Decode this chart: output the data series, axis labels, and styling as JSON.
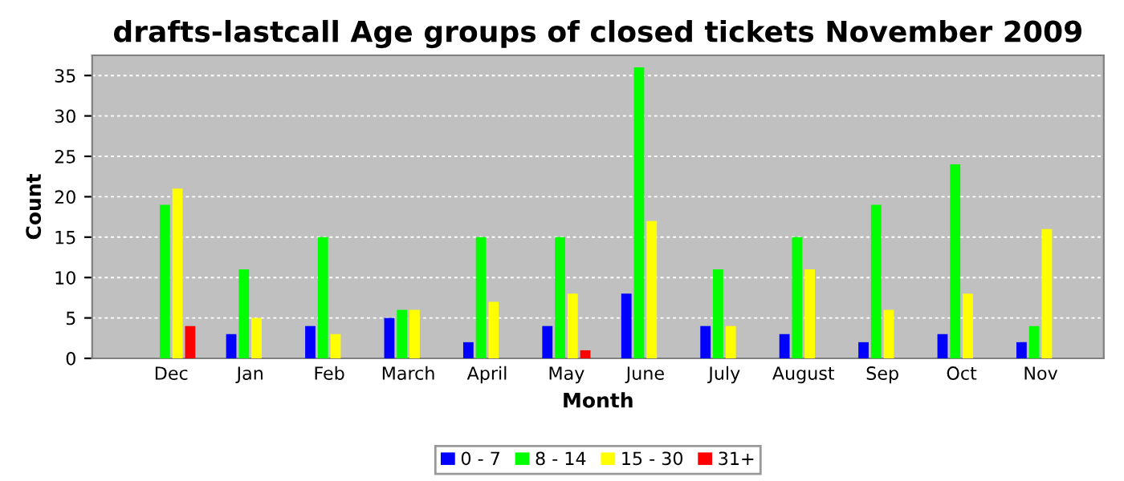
{
  "chart_data": {
    "type": "bar",
    "title": "drafts-lastcall Age groups of closed tickets November 2009",
    "xlabel": "Month",
    "ylabel": "Count",
    "categories": [
      "Dec",
      "Jan",
      "Feb",
      "March",
      "April",
      "May",
      "June",
      "July",
      "August",
      "Sep",
      "Oct",
      "Nov"
    ],
    "series": [
      {
        "name": "0 - 7",
        "color": "#0000ff",
        "values": [
          0,
          3,
          4,
          5,
          2,
          4,
          8,
          4,
          3,
          2,
          3,
          2
        ]
      },
      {
        "name": "8 - 14",
        "color": "#00ff00",
        "values": [
          19,
          11,
          15,
          6,
          15,
          15,
          36,
          11,
          15,
          19,
          24,
          4
        ]
      },
      {
        "name": "15 - 30",
        "color": "#ffff00",
        "values": [
          21,
          5,
          3,
          6,
          7,
          8,
          17,
          4,
          11,
          6,
          8,
          16
        ]
      },
      {
        "name": "31+",
        "color": "#ff0000",
        "values": [
          4,
          0,
          0,
          0,
          0,
          1,
          0,
          0,
          0,
          0,
          0,
          0
        ]
      }
    ],
    "ylim": [
      0,
      37.5
    ],
    "yticks": [
      0,
      5,
      10,
      15,
      20,
      25,
      30,
      35
    ],
    "grid": "y",
    "legend": "bottom"
  }
}
